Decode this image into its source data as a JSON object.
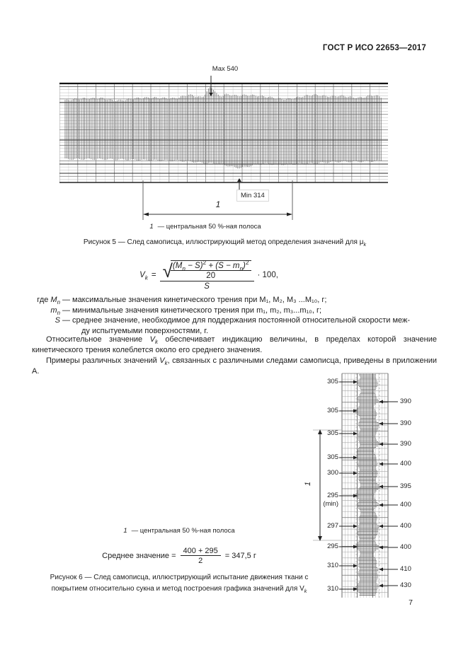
{
  "header": {
    "title": "ГОСТ Р ИСО 22653—2017"
  },
  "page_number": "7",
  "figure5": {
    "max_label": "Max 540",
    "min_label": "Min 314",
    "band_label": "1",
    "legend_item": "1",
    "legend_text": "—  центральная 50 %-ная полоса",
    "caption": "Рисунок 5 —  След самописца, иллюстрирующий метод определения значений для μ",
    "caption_sub": "k"
  },
  "formula": {
    "lhs": "V",
    "lhs_sub": "k",
    "equals": "=",
    "n1": "(M",
    "n1_sub": "n",
    "n2": " − S)",
    "n2_sup": "2",
    "n3": " + (S − m",
    "n3_sub": "n",
    "n4": ")",
    "n4_sup": "2",
    "inner_den": "20",
    "outer_den": "S",
    "factor": "· 100,"
  },
  "definitions": {
    "intro": "где ",
    "rows": [
      {
        "term": "M",
        "term_sub": "n",
        "dash": "—",
        "text": "максимальные значения кинетического трения при M₁, M₂, M₃ ...M₁₀, г;"
      },
      {
        "term": "m",
        "term_sub": "n",
        "dash": "—",
        "text": "минимальные значения кинетического трения при m₁, m₂, m₃...m₁₀, г;"
      },
      {
        "term": "S",
        "term_sub": "",
        "dash": "—",
        "text": "среднее значение, необходимое для поддержания постоянной относительной скорости  меж-",
        "text2": "ду испытуемыми поверхностями, г."
      }
    ]
  },
  "paragraphs": {
    "p1_a": "Относительное значение ",
    "p1_var": "V",
    "p1_sub": "k",
    "p1_b": " обеспечивает индикацию величины, в пределах которой значение кинетического трения колеблется около его среднего значения.",
    "p2_a": "Примеры различных значений ",
    "p2_var": "V",
    "p2_sub": "k",
    "p2_b": ", связанных с различными следами самописца, приведены в приложении А."
  },
  "figure6": {
    "left_labels": [
      "305",
      "305",
      "305",
      "305",
      "300",
      "295",
      "297",
      "295",
      "310",
      "310"
    ],
    "min_note": "(min)",
    "right_labels": [
      "390",
      "390",
      "390",
      "400",
      "395",
      "400",
      "400",
      "400",
      "410",
      "430"
    ],
    "band_label": "1",
    "legend_item": "1",
    "legend_text": "—  центральная 50 %-ная полоса",
    "mean_prefix": "Среднее значение = ",
    "mean_num": "400 + 295",
    "mean_den": "2",
    "mean_result": "= 347,5 г",
    "caption_line1": "Рисунок 6 —  След самописца, иллюстрирующий испытание движения ткани с",
    "caption_line2": "покрытием относительно сукна и метод построения графика значений для V",
    "caption_sub": "k"
  },
  "chart_data": [
    {
      "type": "line",
      "name": "figure5-recorder-trace",
      "title": "След самописца, иллюстрирующий метод определения значений для μk",
      "annotations": {
        "max": 540,
        "min": 314,
        "band": "центральная 50 %-ная полоса"
      }
    },
    {
      "type": "line",
      "name": "figure6-recorder-trace",
      "title": "След самописца: испытание движения ткани с покрытием относительно сукна",
      "minima": [
        305,
        305,
        305,
        305,
        300,
        295,
        297,
        295,
        310,
        310
      ],
      "maxima": [
        390,
        390,
        390,
        400,
        395,
        400,
        400,
        400,
        410,
        430
      ],
      "mean": 347.5,
      "mean_units": "г"
    }
  ]
}
